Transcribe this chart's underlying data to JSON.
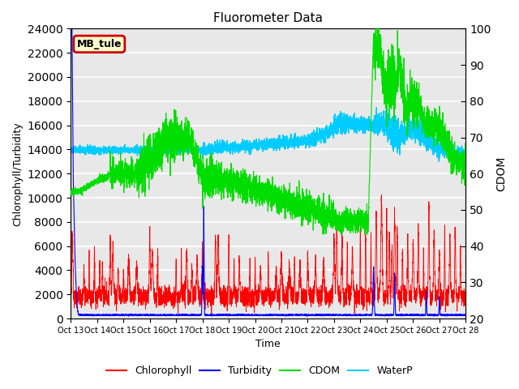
{
  "title": "Fluorometer Data",
  "xlabel": "Time",
  "ylabel_left": "Chlorophyll/Turbidity",
  "ylabel_right": "CDOM",
  "annotation": "MB_tule",
  "ylim_left": [
    0,
    24000
  ],
  "ylim_right": [
    20,
    100
  ],
  "yticks_left": [
    0,
    2000,
    4000,
    6000,
    8000,
    10000,
    12000,
    14000,
    16000,
    18000,
    20000,
    22000,
    24000
  ],
  "yticks_right": [
    20,
    30,
    40,
    50,
    60,
    70,
    80,
    90,
    100
  ],
  "xtick_labels": [
    "Oct 13",
    "Oct 14",
    "Oct 15",
    "Oct 16",
    "Oct 17",
    "Oct 18",
    "Oct 19",
    "Oct 20",
    "Oct 21",
    "Oct 22",
    "Oct 23",
    "Oct 24",
    "Oct 25",
    "Oct 26",
    "Oct 27",
    "Oct 28"
  ],
  "legend_labels": [
    "Chlorophyll",
    "Turbidity",
    "CDOM",
    "WaterP"
  ],
  "colors": {
    "Chlorophyll": "#ff0000",
    "Turbidity": "#0000ff",
    "CDOM": "#00dd00",
    "WaterP": "#00ccff",
    "background": "#e8e8e8",
    "annotation_bg": "#ffffcc",
    "annotation_border": "#cc0000"
  },
  "fig_width": 6.4,
  "fig_height": 4.8,
  "dpi": 100
}
